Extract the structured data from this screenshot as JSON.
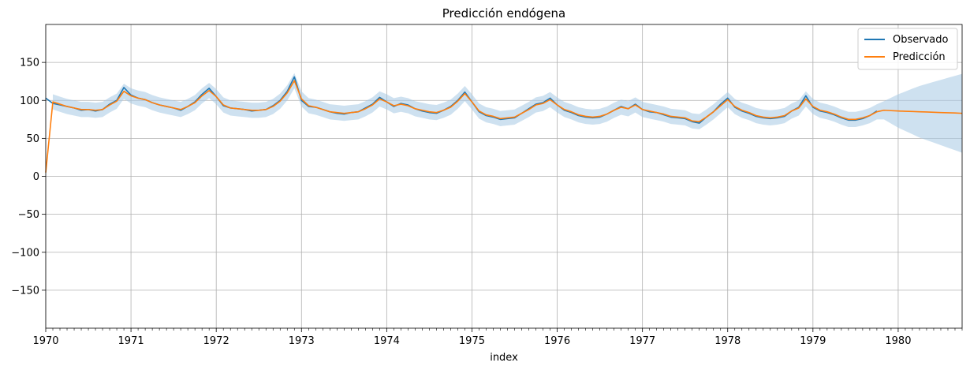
{
  "chart_data": {
    "type": "line",
    "title": "Predicción endógena",
    "xlabel": "index",
    "ylabel": "",
    "xlim": [
      "1970-01",
      "1980-10"
    ],
    "ylim": [
      -200,
      200
    ],
    "x_ticks": [
      "1970",
      "1971",
      "1972",
      "1973",
      "1974",
      "1975",
      "1976",
      "1977",
      "1978",
      "1979",
      "1980"
    ],
    "y_ticks": [
      "150",
      "100",
      "50",
      "0",
      "−50",
      "−100",
      "−150"
    ],
    "y_tick_values": [
      150,
      100,
      50,
      0,
      -50,
      -100,
      -150
    ],
    "grid": true,
    "legend_position": "top-right",
    "legend": [
      "Observado",
      "Predicción"
    ],
    "colors": {
      "observado": "#1f77b4",
      "prediccion": "#ff7f0e",
      "band": "#a6c8e4"
    },
    "observed_dates": [
      "1970-01",
      "1970-02",
      "1970-03",
      "1970-04",
      "1970-05",
      "1970-06",
      "1970-07",
      "1970-08",
      "1970-09",
      "1970-10",
      "1970-11",
      "1970-12",
      "1971-01",
      "1971-02",
      "1971-03",
      "1971-04",
      "1971-05",
      "1971-06",
      "1971-07",
      "1971-08",
      "1971-09",
      "1971-10",
      "1971-11",
      "1971-12",
      "1972-01",
      "1972-02",
      "1972-03",
      "1972-04",
      "1972-05",
      "1972-06",
      "1972-07",
      "1972-08",
      "1972-09",
      "1972-10",
      "1972-11",
      "1972-12",
      "1973-01",
      "1973-02",
      "1973-03",
      "1973-04",
      "1973-05",
      "1973-06",
      "1973-07",
      "1973-08",
      "1973-09",
      "1973-10",
      "1973-11",
      "1973-12",
      "1974-01",
      "1974-02",
      "1974-03",
      "1974-04",
      "1974-05",
      "1974-06",
      "1974-07",
      "1974-08",
      "1974-09",
      "1974-10",
      "1974-11",
      "1974-12",
      "1975-01",
      "1975-02",
      "1975-03",
      "1975-04",
      "1975-05",
      "1975-06",
      "1975-07",
      "1975-08",
      "1975-09",
      "1975-10",
      "1975-11",
      "1975-12",
      "1976-01",
      "1976-02",
      "1976-03",
      "1976-04",
      "1976-05",
      "1976-06",
      "1976-07",
      "1976-08",
      "1976-09",
      "1976-10",
      "1976-11",
      "1976-12",
      "1977-01",
      "1977-02",
      "1977-03",
      "1977-04",
      "1977-05",
      "1977-06",
      "1977-07",
      "1977-08",
      "1977-09",
      "1977-10",
      "1977-11",
      "1977-12",
      "1978-01",
      "1978-02",
      "1978-03",
      "1978-04",
      "1978-05",
      "1978-06",
      "1978-07",
      "1978-08",
      "1978-09",
      "1978-10",
      "1978-11",
      "1978-12",
      "1979-01",
      "1979-02",
      "1979-03",
      "1979-04",
      "1979-05",
      "1979-06",
      "1979-07",
      "1979-08",
      "1979-09",
      "1979-10"
    ],
    "observado": [
      103,
      96,
      94,
      92,
      90,
      87,
      88,
      86,
      88,
      95,
      100,
      117,
      107,
      103,
      101,
      97,
      94,
      92,
      90,
      87,
      92,
      98,
      108,
      116,
      105,
      93,
      90,
      89,
      88,
      86,
      87,
      88,
      93,
      100,
      112,
      131,
      100,
      92,
      91,
      88,
      85,
      83,
      82,
      84,
      85,
      90,
      95,
      104,
      98,
      92,
      96,
      94,
      89,
      86,
      84,
      83,
      87,
      92,
      100,
      111,
      98,
      85,
      80,
      78,
      75,
      76,
      77,
      83,
      89,
      95,
      97,
      103,
      94,
      87,
      84,
      80,
      78,
      77,
      78,
      82,
      87,
      92,
      89,
      95,
      88,
      85,
      84,
      81,
      78,
      77,
      76,
      72,
      70,
      78,
      85,
      95,
      103,
      91,
      86,
      83,
      79,
      77,
      76,
      77,
      79,
      86,
      91,
      106,
      91,
      86,
      84,
      81,
      77,
      74,
      74,
      76,
      80,
      86
    ],
    "prediction_dates": [
      "1970-01",
      "1970-02",
      "1970-03",
      "1970-04",
      "1970-05",
      "1970-06",
      "1970-07",
      "1970-08",
      "1970-09",
      "1970-10",
      "1970-11",
      "1970-12",
      "1971-01",
      "1971-02",
      "1971-03",
      "1971-04",
      "1971-05",
      "1971-06",
      "1971-07",
      "1971-08",
      "1971-09",
      "1971-10",
      "1971-11",
      "1971-12",
      "1972-01",
      "1972-02",
      "1972-03",
      "1972-04",
      "1972-05",
      "1972-06",
      "1972-07",
      "1972-08",
      "1972-09",
      "1972-10",
      "1972-11",
      "1972-12",
      "1973-01",
      "1973-02",
      "1973-03",
      "1973-04",
      "1973-05",
      "1973-06",
      "1973-07",
      "1973-08",
      "1973-09",
      "1973-10",
      "1973-11",
      "1973-12",
      "1974-01",
      "1974-02",
      "1974-03",
      "1974-04",
      "1974-05",
      "1974-06",
      "1974-07",
      "1974-08",
      "1974-09",
      "1974-10",
      "1974-11",
      "1974-12",
      "1975-01",
      "1975-02",
      "1975-03",
      "1975-04",
      "1975-05",
      "1975-06",
      "1975-07",
      "1975-08",
      "1975-09",
      "1975-10",
      "1975-11",
      "1975-12",
      "1976-01",
      "1976-02",
      "1976-03",
      "1976-04",
      "1976-05",
      "1976-06",
      "1976-07",
      "1976-08",
      "1976-09",
      "1976-10",
      "1976-11",
      "1976-12",
      "1977-01",
      "1977-02",
      "1977-03",
      "1977-04",
      "1977-05",
      "1977-06",
      "1977-07",
      "1977-08",
      "1977-09",
      "1977-10",
      "1977-11",
      "1977-12",
      "1978-01",
      "1978-02",
      "1978-03",
      "1978-04",
      "1978-05",
      "1978-06",
      "1978-07",
      "1978-08",
      "1978-09",
      "1978-10",
      "1978-11",
      "1978-12",
      "1979-01",
      "1979-02",
      "1979-03",
      "1979-04",
      "1979-05",
      "1979-06",
      "1979-07",
      "1979-08",
      "1979-09",
      "1979-10",
      "1979-11",
      "1979-12",
      "1980-01",
      "1980-02",
      "1980-03",
      "1980-04",
      "1980-05",
      "1980-06",
      "1980-07",
      "1980-08",
      "1980-09",
      "1980-10"
    ],
    "prediccion": [
      5,
      98,
      95,
      92,
      90,
      88,
      88,
      87,
      88,
      94,
      99,
      112,
      106,
      103,
      101,
      97,
      94,
      92,
      90,
      88,
      92,
      97,
      106,
      113,
      105,
      94,
      90,
      89,
      88,
      87,
      87,
      88,
      92,
      99,
      110,
      126,
      102,
      93,
      91,
      88,
      85,
      84,
      83,
      84,
      85,
      89,
      94,
      102,
      98,
      93,
      95,
      93,
      89,
      87,
      85,
      84,
      87,
      91,
      99,
      109,
      98,
      86,
      81,
      79,
      76,
      77,
      78,
      83,
      88,
      94,
      96,
      101,
      94,
      88,
      85,
      81,
      79,
      78,
      79,
      82,
      87,
      91,
      89,
      94,
      88,
      86,
      84,
      82,
      79,
      78,
      77,
      73,
      72,
      78,
      85,
      93,
      101,
      92,
      87,
      84,
      80,
      78,
      77,
      78,
      80,
      86,
      90,
      102,
      92,
      87,
      85,
      82,
      78,
      75,
      75,
      77,
      80,
      85,
      87,
      86.5,
      86,
      85.7,
      85.4,
      85,
      84.7,
      84.4,
      84,
      83.7,
      83.4,
      83
    ],
    "band_halfwidth": [
      10,
      10,
      10,
      10,
      10,
      10,
      10,
      10,
      10,
      10,
      10,
      10,
      10,
      10,
      10,
      10,
      10,
      10,
      10,
      10,
      10,
      10,
      10,
      10,
      10,
      10,
      10,
      10,
      10,
      10,
      10,
      10,
      10,
      10,
      10,
      10,
      10,
      10,
      10,
      10,
      10,
      10,
      10,
      10,
      10,
      10,
      10,
      10,
      10,
      10,
      10,
      10,
      10,
      10,
      10,
      10,
      10,
      10,
      10,
      10,
      10,
      10,
      10,
      10,
      10,
      10,
      10,
      10,
      10,
      10,
      10,
      10,
      10,
      10,
      10,
      10,
      10,
      10,
      10,
      10,
      10,
      10,
      10,
      10,
      10,
      10,
      10,
      10,
      10,
      10,
      10,
      10,
      10,
      10,
      10,
      10,
      10,
      10,
      10,
      10,
      10,
      10,
      10,
      10,
      10,
      10,
      10,
      10,
      10,
      10,
      10,
      10,
      10,
      10,
      10,
      10,
      10,
      10,
      12,
      17,
      22,
      26,
      30,
      34,
      37,
      40,
      43,
      46,
      49,
      52
    ]
  }
}
